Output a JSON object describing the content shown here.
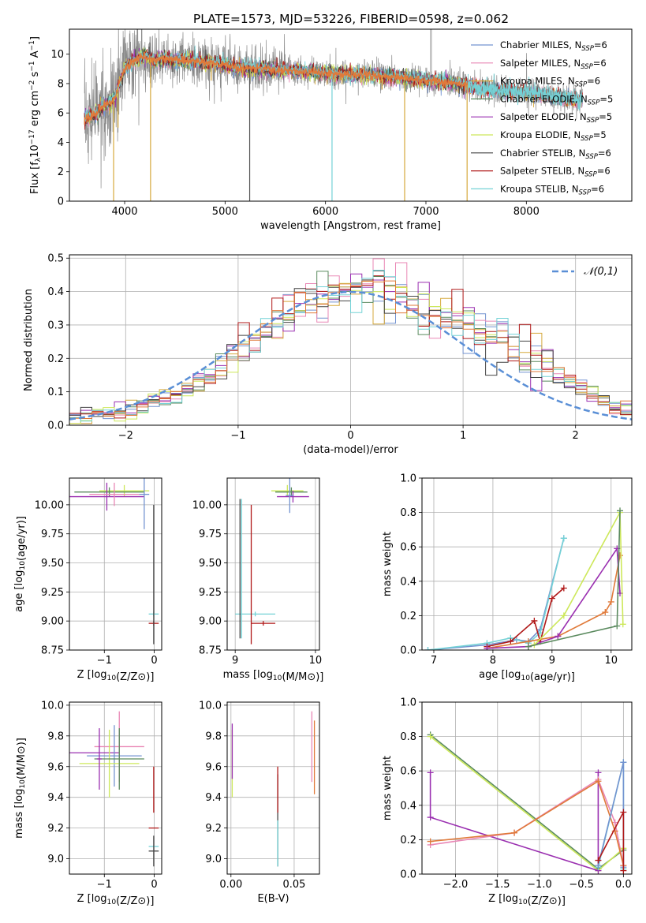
{
  "figure_title": "PLATE=1573, MJD=53226, FIBERID=0598, z=0.062",
  "colors": {
    "chabrier_miles": "#7393d0",
    "salpeter_miles": "#e987b5",
    "kroupa_miles": "#d6a93c",
    "chabrier_elodie": "#5a8a5e",
    "salpeter_elodie": "#9a2fb0",
    "kroupa_elodie": "#cde85a",
    "chabrier_stelib": "#444444",
    "salpeter_stelib": "#b01818",
    "kroupa_stelib": "#74d2d6",
    "spectrum": "#8a8a8a",
    "model": "#e07a3a",
    "gaussian": "#5a8fd6"
  },
  "chart_data": [
    {
      "id": "spectrum",
      "type": "line",
      "title": "PLATE=1573, MJD=53226, FIBERID=0598, z=0.062",
      "xlabel": "wavelength [Angstrom, rest frame]",
      "ylabel": "Flux [f$_\\lambda$10$^{-17}$ erg cm$^{-2}$ s$^{-1}$ A$^{-1}$]",
      "ylabel_parts": [
        "Flux [f",
        "λ",
        "10",
        "−17",
        " erg cm",
        "−2",
        " s",
        "−1",
        " A",
        "−1",
        "]"
      ],
      "xlim": [
        3450,
        9050
      ],
      "ylim": [
        0,
        11.7
      ],
      "xticks": [
        4000,
        5000,
        6000,
        7000,
        8000
      ],
      "yticks": [
        0,
        2,
        4,
        6,
        8,
        10
      ],
      "legend_position": "top-right",
      "legend": [
        {
          "label": "Chabrier MILES, N",
          "sub": "SSP",
          "tail": "=6",
          "color_key": "chabrier_miles"
        },
        {
          "label": "Salpeter MILES, N",
          "sub": "SSP",
          "tail": "=6",
          "color_key": "salpeter_miles"
        },
        {
          "label": "Kroupa MILES, N",
          "sub": "SSP",
          "tail": "=6",
          "color_key": "kroupa_miles"
        },
        {
          "label": "Chabrier ELODIE, N",
          "sub": "SSP",
          "tail": "=5",
          "color_key": "chabrier_elodie"
        },
        {
          "label": "Salpeter ELODIE, N",
          "sub": "SSP",
          "tail": "=5",
          "color_key": "salpeter_elodie"
        },
        {
          "label": "Kroupa ELODIE, N",
          "sub": "SSP",
          "tail": "=5",
          "color_key": "kroupa_elodie"
        },
        {
          "label": "Chabrier STELIB, N",
          "sub": "SSP",
          "tail": "=6",
          "color_key": "chabrier_stelib"
        },
        {
          "label": "Salpeter STELIB, N",
          "sub": "SSP",
          "tail": "=6",
          "color_key": "salpeter_stelib"
        },
        {
          "label": "Kroupa STELIB, N",
          "sub": "SSP",
          "tail": "=6",
          "color_key": "kroupa_stelib"
        }
      ],
      "continuum": [
        [
          3600,
          5.6
        ],
        [
          3700,
          5.9
        ],
        [
          3800,
          6.5
        ],
        [
          3900,
          7.0
        ],
        [
          4000,
          9.0
        ],
        [
          4100,
          9.6
        ],
        [
          4200,
          9.9
        ],
        [
          4300,
          9.5
        ],
        [
          4400,
          9.7
        ],
        [
          4500,
          9.6
        ],
        [
          4600,
          9.6
        ],
        [
          4700,
          9.5
        ],
        [
          4800,
          9.4
        ],
        [
          4900,
          9.4
        ],
        [
          5000,
          9.3
        ],
        [
          5100,
          9.1
        ],
        [
          5200,
          9.0
        ],
        [
          5300,
          9.0
        ],
        [
          5400,
          9.0
        ],
        [
          5500,
          8.9
        ],
        [
          5600,
          8.9
        ],
        [
          5800,
          8.8
        ],
        [
          6000,
          8.7
        ],
        [
          6200,
          8.6
        ],
        [
          6400,
          8.6
        ],
        [
          6600,
          8.5
        ],
        [
          6800,
          8.4
        ],
        [
          7000,
          8.2
        ],
        [
          7200,
          8.1
        ],
        [
          7400,
          7.9
        ],
        [
          7600,
          7.6
        ],
        [
          7800,
          7.5
        ],
        [
          8000,
          7.4
        ],
        [
          8200,
          7.2
        ],
        [
          8400,
          7.0
        ],
        [
          8560,
          6.9
        ]
      ],
      "model_dips": [
        [
          3890,
          0
        ],
        [
          3934,
          5.0
        ],
        [
          4258,
          0
        ],
        [
          4862,
          8.2
        ],
        [
          5175,
          8.4
        ],
        [
          5245,
          0
        ],
        [
          6065,
          0
        ],
        [
          6563,
          7.6
        ],
        [
          6788,
          0
        ],
        [
          7410,
          0
        ]
      ]
    },
    {
      "id": "residuals",
      "type": "step",
      "xlabel": "(data-model)/error",
      "ylabel": "Normed distribution",
      "xlim": [
        -2.5,
        2.5
      ],
      "ylim": [
        0,
        0.51
      ],
      "xticks": [
        -2,
        -1,
        0,
        1,
        2
      ],
      "yticks": [
        0.0,
        0.1,
        0.2,
        0.3,
        0.4,
        0.5
      ],
      "legend_position": "top-right",
      "legend": [
        {
          "label": "𝒩(0,1)",
          "color_key": "gaussian"
        }
      ],
      "bin_width": 0.1,
      "envelope": [
        0.02,
        0.025,
        0.03,
        0.035,
        0.04,
        0.05,
        0.06,
        0.07,
        0.08,
        0.09,
        0.11,
        0.13,
        0.15,
        0.17,
        0.2,
        0.23,
        0.25,
        0.28,
        0.3,
        0.33,
        0.35,
        0.37,
        0.38,
        0.39,
        0.4,
        0.41,
        0.42,
        0.42,
        0.4,
        0.38,
        0.36,
        0.34,
        0.33,
        0.32,
        0.31,
        0.3,
        0.28,
        0.27,
        0.25,
        0.23,
        0.21,
        0.19,
        0.17,
        0.15,
        0.13,
        0.11,
        0.09,
        0.07,
        0.05,
        0.04
      ]
    },
    {
      "id": "age-vs-Z",
      "type": "errorbar",
      "xlabel": "Z [log10(Z/Z⊙)]",
      "ylabel": "age  [log10(age/yr)]",
      "xlim": [
        -1.7,
        0.15
      ],
      "ylim": [
        8.75,
        10.23
      ],
      "xticks": [
        -1,
        0
      ],
      "yticks": [
        8.75,
        9.0,
        9.25,
        9.5,
        9.75,
        10.0
      ],
      "points": [
        {
          "x": -0.6,
          "y": 10.12,
          "xerr": 0.5,
          "yerr": 0.05,
          "color_key": "kroupa_elodie"
        },
        {
          "x": -0.9,
          "y": 10.11,
          "xerr": 0.7,
          "yerr": 0.04,
          "color_key": "chabrier_elodie"
        },
        {
          "x": -0.95,
          "y": 10.07,
          "xerr": 0.75,
          "yerr": 0.12,
          "color_key": "salpeter_elodie"
        },
        {
          "x": -0.8,
          "y": 10.09,
          "xerr": 0.5,
          "yerr": 0.1,
          "color_key": "salpeter_miles"
        },
        {
          "x": -0.2,
          "y": 10.09,
          "xerr": 0.1,
          "yerr": 0.3,
          "color_key": "chabrier_miles"
        },
        {
          "x": -0.01,
          "y": 9.06,
          "xerr": 0.1,
          "yerr": 0.02,
          "color_key": "kroupa_stelib"
        },
        {
          "x": -0.01,
          "y": 8.98,
          "xerr": 0.1,
          "yerr": 0.02,
          "color_key": "salpeter_stelib"
        },
        {
          "x": -0.01,
          "y": 9.4,
          "xerr": 0.0,
          "yerr": 0.6,
          "color_key": "chabrier_stelib"
        }
      ]
    },
    {
      "id": "age-vs-mass",
      "type": "errorbar",
      "xlabel": "mass [log10(M/M⊙)]",
      "ylabel": "",
      "xlim": [
        8.9,
        10.05
      ],
      "ylim": [
        8.75,
        10.23
      ],
      "xticks": [
        9,
        10
      ],
      "yticks": [
        8.75,
        9.0,
        9.25,
        9.5,
        9.75,
        10.0
      ],
      "points": [
        {
          "x": 9.65,
          "y": 10.12,
          "xerr": 0.2,
          "yerr": 0.05,
          "color_key": "kroupa_elodie"
        },
        {
          "x": 9.7,
          "y": 10.11,
          "xerr": 0.2,
          "yerr": 0.04,
          "color_key": "chabrier_elodie"
        },
        {
          "x": 9.72,
          "y": 10.07,
          "xerr": 0.2,
          "yerr": 0.05,
          "color_key": "salpeter_elodie"
        },
        {
          "x": 9.68,
          "y": 10.08,
          "xerr": 0.05,
          "yerr": 0.15,
          "color_key": "chabrier_miles"
        },
        {
          "x": 9.25,
          "y": 9.06,
          "xerr": 0.25,
          "yerr": 0.02,
          "color_key": "kroupa_stelib"
        },
        {
          "x": 9.35,
          "y": 8.98,
          "xerr": 0.15,
          "yerr": 0.02,
          "color_key": "salpeter_stelib"
        },
        {
          "x": 9.06,
          "y": 9.45,
          "xerr": 0.0,
          "yerr": 0.6,
          "color_key": "chabrier_stelib"
        },
        {
          "x": 9.08,
          "y": 9.45,
          "xerr": 0.0,
          "yerr": 0.6,
          "color_key": "kroupa_stelib"
        },
        {
          "x": 9.2,
          "y": 9.4,
          "xerr": 0.0,
          "yerr": 0.6,
          "color_key": "salpeter_stelib"
        }
      ]
    },
    {
      "id": "weight-vs-age",
      "type": "line",
      "xlabel": "age  [log10(age/yr)]",
      "ylabel": "mass weight",
      "xlim": [
        6.8,
        10.35
      ],
      "ylim": [
        0,
        1.0
      ],
      "xticks": [
        7,
        8,
        9,
        10
      ],
      "yticks": [
        0.0,
        0.2,
        0.4,
        0.6,
        0.8,
        1.0
      ],
      "series": [
        {
          "color_key": "chabrier_miles",
          "x": [
            6.9,
            7.9,
            8.4,
            8.6,
            8.8,
            9.2
          ],
          "y": [
            0.0,
            0.03,
            0.06,
            0.05,
            0.12,
            0.65
          ]
        },
        {
          "color_key": "kroupa_stelib",
          "x": [
            6.9,
            7.9,
            8.3,
            8.6,
            8.8,
            9.2
          ],
          "y": [
            0.0,
            0.04,
            0.07,
            0.04,
            0.1,
            0.65
          ]
        },
        {
          "color_key": "salpeter_stelib",
          "x": [
            7.9,
            8.3,
            8.7,
            8.8,
            9.0,
            9.2
          ],
          "y": [
            0.02,
            0.05,
            0.17,
            0.05,
            0.3,
            0.36
          ]
        },
        {
          "color_key": "model",
          "x": [
            7.9,
            8.6,
            9.1,
            9.9,
            10.0,
            10.15
          ],
          "y": [
            0.01,
            0.05,
            0.08,
            0.22,
            0.28,
            0.55
          ]
        },
        {
          "color_key": "salpeter_elodie",
          "x": [
            7.9,
            8.6,
            9.1,
            10.1,
            10.15
          ],
          "y": [
            0.01,
            0.02,
            0.08,
            0.59,
            0.33
          ]
        },
        {
          "color_key": "kroupa_elodie",
          "x": [
            8.7,
            9.2,
            10.15,
            10.2
          ],
          "y": [
            0.03,
            0.2,
            0.8,
            0.15
          ]
        },
        {
          "color_key": "chabrier_elodie",
          "x": [
            8.6,
            10.1,
            10.15
          ],
          "y": [
            0.02,
            0.14,
            0.81
          ]
        }
      ]
    },
    {
      "id": "mass-vs-Z",
      "type": "errorbar",
      "xlabel": "Z [log10(Z/Z⊙)]",
      "ylabel": "mass [log10(M/M⊙)]",
      "xlim": [
        -1.7,
        0.15
      ],
      "ylim": [
        8.9,
        10.02
      ],
      "xticks": [
        -1,
        0
      ],
      "yticks": [
        9.0,
        9.2,
        9.4,
        9.6,
        9.8,
        10.0
      ],
      "points": [
        {
          "x": -1.2,
          "y": 9.69,
          "xerr": 0.5,
          "yerr": 0.0,
          "color_key": "salpeter_elodie"
        },
        {
          "x": -0.7,
          "y": 9.73,
          "xerr": 0.5,
          "yerr": 0.23,
          "color_key": "salpeter_miles"
        },
        {
          "x": -0.8,
          "y": 9.67,
          "xerr": 0.55,
          "yerr": 0.2,
          "color_key": "chabrier_miles"
        },
        {
          "x": -0.9,
          "y": 9.62,
          "xerr": 0.6,
          "yerr": 0.22,
          "color_key": "kroupa_elodie"
        },
        {
          "x": -0.7,
          "y": 9.65,
          "xerr": 0.5,
          "yerr": 0.2,
          "color_key": "chabrier_elodie"
        },
        {
          "x": -1.1,
          "y": 9.65,
          "xerr": 0.05,
          "yerr": 0.2,
          "color_key": "salpeter_elodie"
        },
        {
          "x": -0.01,
          "y": 9.2,
          "xerr": 0.1,
          "yerr": 0.0,
          "color_key": "salpeter_stelib"
        },
        {
          "x": -0.01,
          "y": 9.08,
          "xerr": 0.1,
          "yerr": 0.0,
          "color_key": "kroupa_stelib"
        },
        {
          "x": -0.01,
          "y": 9.05,
          "xerr": 0.1,
          "yerr": 0.1,
          "color_key": "chabrier_stelib"
        },
        {
          "x": -0.01,
          "y": 9.45,
          "xerr": 0.0,
          "yerr": 0.15,
          "color_key": "salpeter_stelib"
        }
      ]
    },
    {
      "id": "mass-vs-EBV",
      "type": "errorbar",
      "xlabel": "E(B-V)",
      "ylabel": "",
      "xlim": [
        -0.003,
        0.07
      ],
      "ylim": [
        8.9,
        10.02
      ],
      "xticks": [
        0.0,
        0.05
      ],
      "yticks": [
        9.0,
        9.2,
        9.4,
        9.6,
        9.8,
        10.0
      ],
      "points": [
        {
          "x": 0.001,
          "y": 9.62,
          "xerr": 0.0,
          "yerr": 0.22,
          "color_key": "kroupa_elodie"
        },
        {
          "x": 0.001,
          "y": 9.7,
          "xerr": 0.0,
          "yerr": 0.18,
          "color_key": "salpeter_elodie"
        },
        {
          "x": 0.037,
          "y": 9.25,
          "xerr": 0.0,
          "yerr": 0.3,
          "color_key": "chabrier_stelib"
        },
        {
          "x": 0.037,
          "y": 9.45,
          "xerr": 0.0,
          "yerr": 0.15,
          "color_key": "salpeter_stelib"
        },
        {
          "x": 0.037,
          "y": 9.1,
          "xerr": 0.0,
          "yerr": 0.15,
          "color_key": "kroupa_stelib"
        },
        {
          "x": 0.064,
          "y": 9.73,
          "xerr": 0.0,
          "yerr": 0.23,
          "color_key": "salpeter_miles"
        },
        {
          "x": 0.066,
          "y": 9.66,
          "xerr": 0.0,
          "yerr": 0.24,
          "color_key": "model"
        }
      ]
    },
    {
      "id": "weight-vs-Z",
      "type": "line",
      "xlabel": "Z [log10(Z/Z⊙)]",
      "ylabel": "mass weight",
      "xlim": [
        -2.4,
        0.1
      ],
      "ylim": [
        0,
        1.0
      ],
      "xticks": [
        -2.0,
        -1.5,
        -1.0,
        -0.5,
        0.0
      ],
      "yticks": [
        0.0,
        0.2,
        0.4,
        0.6,
        0.8,
        1.0
      ],
      "series": [
        {
          "color_key": "chabrier_elodie",
          "x": [
            -2.3,
            -0.3,
            0.0
          ],
          "y": [
            0.81,
            0.03,
            0.14
          ]
        },
        {
          "color_key": "kroupa_elodie",
          "x": [
            -2.3,
            -0.3,
            0.0
          ],
          "y": [
            0.8,
            0.02,
            0.15
          ]
        },
        {
          "color_key": "salpeter_elodie",
          "x": [
            -2.3,
            -2.3,
            -0.3,
            -0.3
          ],
          "y": [
            0.59,
            0.33,
            0.02,
            0.59
          ]
        },
        {
          "color_key": "salpeter_miles",
          "x": [
            -2.3,
            -1.3,
            -0.3,
            -0.1,
            0.0
          ],
          "y": [
            0.17,
            0.24,
            0.55,
            0.3,
            0.05
          ]
        },
        {
          "color_key": "model",
          "x": [
            -2.3,
            -1.3,
            -0.3,
            -0.1,
            0.0
          ],
          "y": [
            0.19,
            0.24,
            0.54,
            0.25,
            0.05
          ]
        },
        {
          "color_key": "kroupa_stelib",
          "x": [
            -0.3,
            0.0,
            0.0
          ],
          "y": [
            0.04,
            0.65,
            0.03
          ]
        },
        {
          "color_key": "chabrier_miles",
          "x": [
            -0.3,
            0.0,
            0.0
          ],
          "y": [
            0.05,
            0.65,
            0.04
          ]
        },
        {
          "color_key": "salpeter_stelib",
          "x": [
            -0.3,
            0.0,
            0.0
          ],
          "y": [
            0.08,
            0.36,
            0.02
          ]
        }
      ]
    }
  ]
}
